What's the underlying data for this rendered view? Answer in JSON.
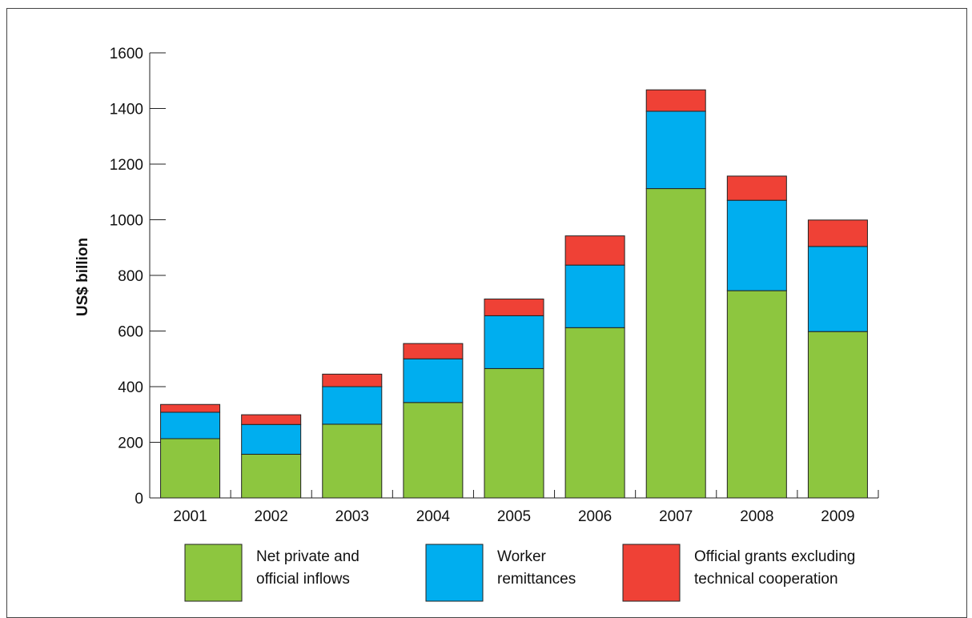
{
  "chart_data": {
    "type": "bar",
    "stacked": true,
    "categories": [
      "2001",
      "2002",
      "2003",
      "2004",
      "2005",
      "2006",
      "2007",
      "2008",
      "2009"
    ],
    "series": [
      {
        "name": "Net private and official inflows",
        "legend_lines": [
          "Net private and",
          "official inflows"
        ],
        "color": "#8dc63f",
        "values": [
          213,
          157,
          265,
          343,
          465,
          612,
          1112,
          745,
          598
        ]
      },
      {
        "name": "Worker remittances",
        "legend_lines": [
          "Worker",
          "remittances"
        ],
        "color": "#00aeef",
        "values": [
          95,
          107,
          135,
          157,
          190,
          225,
          278,
          325,
          306
        ]
      },
      {
        "name": "Official grants excluding technical cooperation",
        "legend_lines": [
          "Official grants excluding",
          "technical cooperation"
        ],
        "color": "#ef4136",
        "values": [
          28,
          35,
          45,
          55,
          60,
          105,
          77,
          87,
          95
        ]
      }
    ],
    "ylabel": "US$ billion",
    "yticks": [
      "0",
      "200",
      "400",
      "600",
      "800",
      "1000",
      "1200",
      "1400",
      "1600"
    ],
    "ylim": [
      0,
      1600
    ],
    "grid": false,
    "legend_position": "bottom"
  }
}
